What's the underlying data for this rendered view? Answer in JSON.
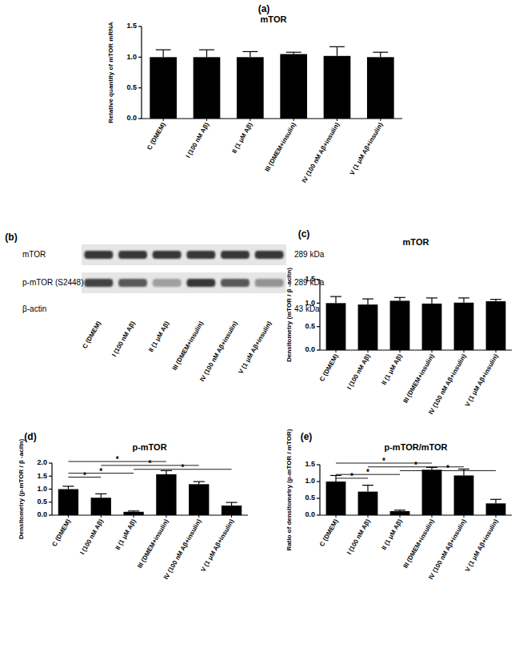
{
  "chart_data": [
    {
      "type": "bar",
      "panel": "(a)",
      "title": "mTOR",
      "y_label": "Relative quantity of mTOR mRNA",
      "categories": [
        "C (DMEM)",
        "I (100 nM Aβ)",
        "II (1 μM Aβ)",
        "III (DMEM+insulin)",
        "IV (100 nM Aβ+insulin)",
        "V (1 μM Aβ+insulin)"
      ],
      "values": [
        1.0,
        1.0,
        1.0,
        1.05,
        1.02,
        1.0
      ],
      "errors": [
        0.12,
        0.12,
        0.09,
        0.03,
        0.15,
        0.08
      ],
      "color": "#000000",
      "ylim": [
        0,
        1.5
      ],
      "yticks": [
        {
          "value": 0,
          "label": "0.0"
        },
        0.5,
        {
          "value": 1,
          "label": "1.0"
        },
        1.5
      ],
      "grid": false,
      "annotations": []
    },
    {
      "type": "bar",
      "panel": "(c)",
      "title": "mTOR",
      "y_label": "Densitometry (mTOR / β -acitn)",
      "categories": [
        "C (DMEM)",
        "I (100 nM Aβ)",
        "II (1 μM Aβ)",
        "III (DMEM+insulin)",
        "IV (100 nM Aβ+insulin)",
        "V (1 μM Aβ+insulin)"
      ],
      "values": [
        1.0,
        0.97,
        1.05,
        0.99,
        1.01,
        1.04
      ],
      "errors": [
        0.14,
        0.12,
        0.07,
        0.12,
        0.1,
        0.04
      ],
      "color": "#000000",
      "ylim": [
        0,
        1.5
      ],
      "yticks": [
        {
          "value": 0,
          "label": "0.0"
        },
        0.5,
        {
          "value": 1,
          "label": "1.0"
        },
        1.5
      ],
      "grid": false,
      "annotations": []
    },
    {
      "type": "bar",
      "panel": "(d)",
      "title": "p-mTOR",
      "y_label": "Densitometry (p-mTOR / β -acitn)",
      "categories": [
        "C (DMEM)",
        "I (100 nM Aβ)",
        "II (1 μM Aβ)",
        "III (DMEM+insulin)",
        "IV (100 nM Aβ+insulin)",
        "V (1 μM Aβ+insulin)"
      ],
      "values": [
        1.0,
        0.67,
        0.13,
        1.57,
        1.19,
        0.37
      ],
      "errors": [
        0.11,
        0.15,
        0.03,
        0.14,
        0.1,
        0.12
      ],
      "color": "#000000",
      "ylim": [
        0,
        2
      ],
      "yticks": [
        {
          "value": 0,
          "label": "0.0"
        },
        0.5,
        {
          "value": 1,
          "label": "1.0"
        },
        1.5,
        {
          "value": 2,
          "label": "2.0"
        }
      ],
      "grid": false,
      "annotations": [
        {
          "from": 0,
          "to": 3,
          "label": "*"
        },
        {
          "from": 1,
          "to": 4,
          "label": "*"
        },
        {
          "from": 2,
          "to": 5,
          "label": "*"
        },
        {
          "from": 0,
          "to": 2,
          "label": "*"
        },
        {
          "from": 0,
          "to": 1,
          "label": "*"
        }
      ]
    },
    {
      "type": "bar",
      "panel": "(e)",
      "title": "p-mTOR/mTOR",
      "y_label": "Ratio of densitometry (p-mTOR / mTOR)",
      "categories": [
        "C (DMEM)",
        "I (100 nM Aβ)",
        "II (1 μM Aβ)",
        "III (DMEM+insulin)",
        "IV (100 nM Aβ+insulin)",
        "V (1 μM Aβ+insulin)"
      ],
      "values": [
        1.0,
        0.7,
        0.12,
        1.35,
        1.18,
        0.35
      ],
      "errors": [
        0.18,
        0.19,
        0.03,
        0.07,
        0.19,
        0.12
      ],
      "color": "#000000",
      "ylim": [
        0,
        1.5
      ],
      "yticks": [
        {
          "value": 0,
          "label": "0.0"
        },
        0.5,
        {
          "value": 1,
          "label": "1.0"
        },
        1.5
      ],
      "grid": false,
      "annotations": [
        {
          "from": 0,
          "to": 3,
          "label": "*"
        },
        {
          "from": 1,
          "to": 4,
          "label": "*"
        },
        {
          "from": 2,
          "to": 5,
          "label": "*"
        },
        {
          "from": 0,
          "to": 2,
          "label": "*"
        },
        {
          "from": 0,
          "to": 1,
          "label": "*"
        }
      ]
    }
  ],
  "blot": {
    "panel": "(b)",
    "lanes": [
      "C (DMEM)",
      "I (100 nM Aβ)",
      "II (1 μM Aβ)",
      "III (DMEM+insulin)",
      "IV (100 nM Aβ+insulin)",
      "V (1 μM Aβ+insulin)"
    ],
    "rows": [
      {
        "label": "mTOR",
        "size": "289 kDa",
        "intensity": [
          0.85,
          0.85,
          0.85,
          0.85,
          0.85,
          0.85
        ]
      },
      {
        "label": "p-mTOR (S2448)",
        "size": "289 kDa",
        "intensity": [
          0.8,
          0.7,
          0.35,
          0.85,
          0.7,
          0.4
        ]
      },
      {
        "label": "β-actin",
        "size": "43 kDa",
        "intensity": [
          0,
          0,
          0,
          0,
          0,
          0
        ]
      }
    ]
  }
}
